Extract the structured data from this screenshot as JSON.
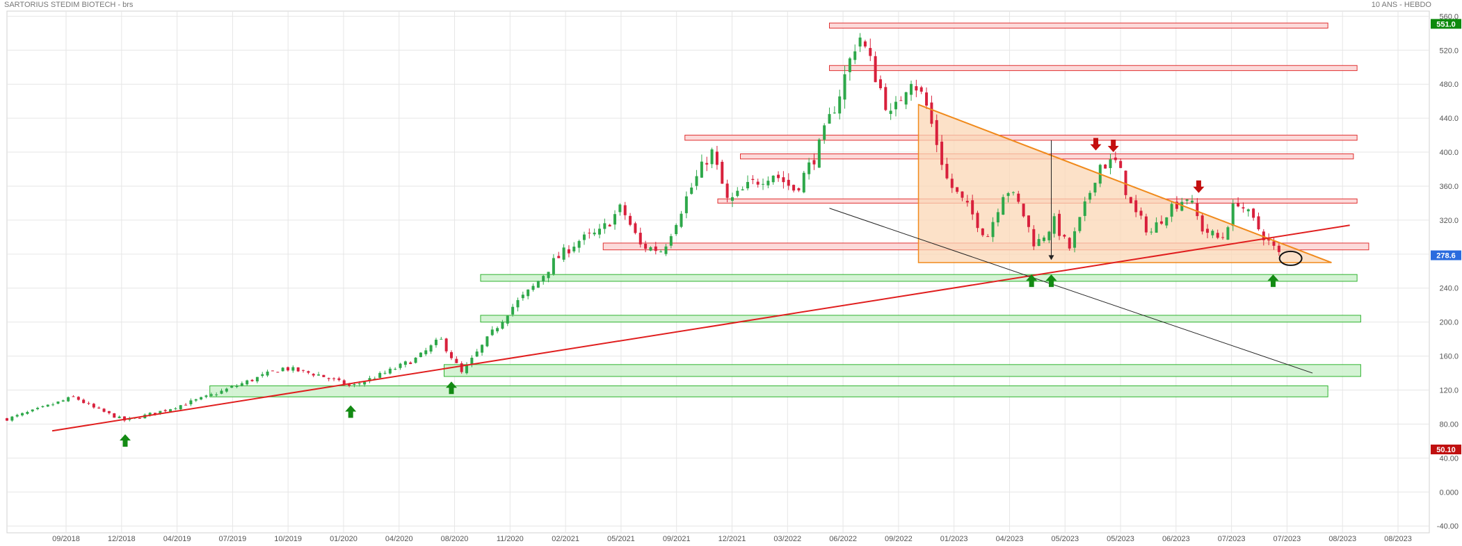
{
  "header": {
    "title": "SARTORIUS STEDIM BIOTECH - brs",
    "subtitle": "10 ANS - HEBDO"
  },
  "colors": {
    "up": "#2ea84a",
    "down": "#d8203c",
    "grid": "#e6e6e6",
    "resistance_fill": "#fbd4d4",
    "resistance_stroke": "#e03030",
    "support_fill": "#cdf1cd",
    "support_stroke": "#2fb32f",
    "triangle_fill": "#fbd7b5",
    "triangle_stroke": "#f08a1c",
    "trendline": "#e01e1e",
    "arrow_up": "#138a13",
    "arrow_down": "#c40f0f",
    "badge_green": "#0c8a0c",
    "badge_blue": "#2a6bde",
    "badge_red": "#c01010"
  },
  "chart_data": {
    "type": "candlestick",
    "title": "SARTORIUS STEDIM BIOTECH - brs",
    "subtitle": "10 ANS - HEBDO",
    "x_tick_labels": [
      "09/2018",
      "12/2018",
      "04/2019",
      "07/2019",
      "10/2019",
      "01/2020",
      "04/2020",
      "08/2020",
      "11/2020",
      "02/2021",
      "05/2021",
      "09/2021",
      "12/2021",
      "03/2022",
      "06/2022",
      "09/2022",
      "01/2023",
      "04/2023",
      "05/2023",
      "05/2023",
      "06/2023",
      "07/2023",
      "07/2023",
      "08/2023",
      "08/2023"
    ],
    "y_ticks": [
      560,
      520,
      480,
      440,
      400,
      360,
      320,
      280,
      240,
      200,
      160,
      120,
      80,
      40,
      0,
      -40
    ],
    "y_tick_labels": [
      "560.0",
      "520.0",
      "480.0",
      "440.0",
      "400.0",
      "360.0",
      "320.0",
      "280.0",
      "240.0",
      "200.0",
      "160.0",
      "120.0",
      "80.00",
      "40.00",
      "0.000",
      "-40.00"
    ],
    "ylim": [
      -48,
      566
    ],
    "grid": true,
    "price_badges": [
      {
        "label": "551.0",
        "value": 551.0,
        "color": "green"
      },
      {
        "label": "278.6",
        "value": 278.6,
        "color": "blue"
      },
      {
        "label": "50.10",
        "value": 50.1,
        "color": "red"
      }
    ],
    "approx_close_path": [
      {
        "date": "2018-07-01",
        "close": 86
      },
      {
        "date": "2018-08-15",
        "close": 98
      },
      {
        "date": "2018-10-01",
        "close": 112
      },
      {
        "date": "2018-10-25",
        "close": 100
      },
      {
        "date": "2018-12-10",
        "close": 84
      },
      {
        "date": "2019-02-01",
        "close": 96
      },
      {
        "date": "2019-04-01",
        "close": 112
      },
      {
        "date": "2019-05-20",
        "close": 128
      },
      {
        "date": "2019-07-15",
        "close": 146
      },
      {
        "date": "2019-09-01",
        "close": 138
      },
      {
        "date": "2019-10-15",
        "close": 124
      },
      {
        "date": "2019-12-01",
        "close": 140
      },
      {
        "date": "2020-01-15",
        "close": 158
      },
      {
        "date": "2020-02-15",
        "close": 180
      },
      {
        "date": "2020-03-15",
        "close": 140
      },
      {
        "date": "2020-04-15",
        "close": 175
      },
      {
        "date": "2020-05-20",
        "close": 215
      },
      {
        "date": "2020-06-20",
        "close": 240
      },
      {
        "date": "2020-07-20",
        "close": 272
      },
      {
        "date": "2020-08-20",
        "close": 295
      },
      {
        "date": "2020-09-20",
        "close": 305
      },
      {
        "date": "2020-10-20",
        "close": 335
      },
      {
        "date": "2020-11-15",
        "close": 290
      },
      {
        "date": "2020-12-15",
        "close": 284
      },
      {
        "date": "2021-01-20",
        "close": 352
      },
      {
        "date": "2021-02-20",
        "close": 402
      },
      {
        "date": "2021-03-15",
        "close": 340
      },
      {
        "date": "2021-04-15",
        "close": 362
      },
      {
        "date": "2021-05-15",
        "close": 376
      },
      {
        "date": "2021-06-15",
        "close": 355
      },
      {
        "date": "2021-07-15",
        "close": 400
      },
      {
        "date": "2021-08-15",
        "close": 470
      },
      {
        "date": "2021-09-10",
        "close": 540
      },
      {
        "date": "2021-10-01",
        "close": 495
      },
      {
        "date": "2021-10-25",
        "close": 440
      },
      {
        "date": "2021-11-20",
        "close": 490
      },
      {
        "date": "2021-12-10",
        "close": 460
      },
      {
        "date": "2022-01-10",
        "close": 365
      },
      {
        "date": "2022-02-10",
        "close": 330
      },
      {
        "date": "2022-03-05",
        "close": 300
      },
      {
        "date": "2022-03-30",
        "close": 360
      },
      {
        "date": "2022-04-20",
        "close": 335
      },
      {
        "date": "2022-05-10",
        "close": 290
      },
      {
        "date": "2022-06-05",
        "close": 318
      },
      {
        "date": "2022-06-25",
        "close": 285
      },
      {
        "date": "2022-07-15",
        "close": 330
      },
      {
        "date": "2022-08-05",
        "close": 385
      },
      {
        "date": "2022-08-30",
        "close": 388
      },
      {
        "date": "2022-09-20",
        "close": 332
      },
      {
        "date": "2022-10-15",
        "close": 305
      },
      {
        "date": "2022-11-10",
        "close": 335
      },
      {
        "date": "2022-12-05",
        "close": 348
      },
      {
        "date": "2022-12-25",
        "close": 310
      },
      {
        "date": "2023-01-20",
        "close": 296
      },
      {
        "date": "2023-02-10",
        "close": 345
      },
      {
        "date": "2023-03-05",
        "close": 318
      },
      {
        "date": "2023-03-25",
        "close": 295
      },
      {
        "date": "2023-04-10",
        "close": 278.6
      }
    ],
    "resistance_zones": [
      {
        "from": "2021-08-01",
        "to": "2023-06-15",
        "low": 546,
        "high": 552
      },
      {
        "from": "2021-08-01",
        "to": "2023-07-25",
        "low": 496,
        "high": 502
      },
      {
        "from": "2021-01-15",
        "to": "2023-07-25",
        "low": 414,
        "high": 420
      },
      {
        "from": "2021-04-01",
        "to": "2023-07-20",
        "low": 392,
        "high": 398
      },
      {
        "from": "2021-03-01",
        "to": "2023-07-25",
        "low": 340,
        "high": 345
      },
      {
        "from": "2020-09-25",
        "to": "2023-08-10",
        "low": 285,
        "high": 293
      }
    ],
    "support_zones": [
      {
        "from": "2020-04-10",
        "to": "2023-07-25",
        "low": 248,
        "high": 256
      },
      {
        "from": "2020-04-10",
        "to": "2023-07-30",
        "low": 200,
        "high": 208
      },
      {
        "from": "2020-02-20",
        "to": "2023-07-30",
        "low": 136,
        "high": 150
      },
      {
        "from": "2019-04-05",
        "to": "2023-06-15",
        "low": 112,
        "high": 125
      }
    ],
    "descending_triangle": [
      {
        "date": "2021-12-01",
        "price": 456
      },
      {
        "date": "2021-12-01",
        "price": 270
      },
      {
        "date": "2023-06-20",
        "price": 270
      }
    ],
    "triangle_upper_line": {
      "from": {
        "date": "2021-12-01",
        "price": 456
      },
      "to": {
        "date": "2023-06-20",
        "price": 270
      }
    },
    "rising_trendline": {
      "from": {
        "date": "2018-09-01",
        "price": 72
      },
      "to": {
        "date": "2023-07-15",
        "price": 314
      }
    },
    "descending_line": {
      "from": {
        "date": "2021-08-01",
        "price": 334
      },
      "to": {
        "date": "2023-05-25",
        "price": 140
      }
    },
    "target_arrow": {
      "date": "2022-06-01",
      "from": 414,
      "to": 273
    },
    "arrows_up": [
      {
        "date": "2018-12-10",
        "price": 68
      },
      {
        "date": "2019-10-15",
        "price": 102
      },
      {
        "date": "2020-03-01",
        "price": 130
      },
      {
        "date": "2022-05-05",
        "price": 256
      },
      {
        "date": "2022-06-01",
        "price": 256
      },
      {
        "date": "2023-04-01",
        "price": 256
      }
    ],
    "arrows_down": [
      {
        "date": "2022-08-01",
        "price": 402
      },
      {
        "date": "2022-08-25",
        "price": 400
      },
      {
        "date": "2022-12-20",
        "price": 352
      }
    ],
    "highlight_ellipse": {
      "date": "2023-04-25",
      "price": 275
    }
  }
}
